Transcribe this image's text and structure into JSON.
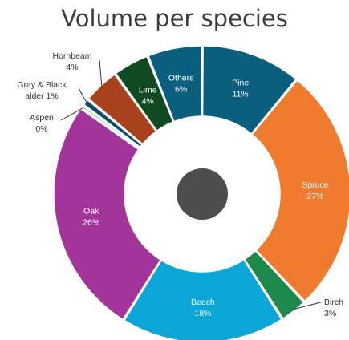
{
  "chart_data": {
    "type": "pie",
    "title": "Volume per species",
    "donut": true,
    "slices": [
      {
        "label": "Pine",
        "value_text": "11%",
        "value": 11,
        "color": "#0b5f7e",
        "label_inside": true
      },
      {
        "label": "Spruce",
        "value_text": "27%",
        "value": 27,
        "color": "#f07a2e",
        "label_inside": true
      },
      {
        "label": "Birch",
        "value_text": "3%",
        "value": 3,
        "color": "#1d8a4b",
        "label_inside": false
      },
      {
        "label": "Beech",
        "value_text": "18%",
        "value": 18,
        "color": "#0aa6d8",
        "label_inside": true
      },
      {
        "label": "Oak",
        "value_text": "26%",
        "value": 26,
        "color": "#a3349a",
        "label_inside": true
      },
      {
        "label": "Aspen",
        "value_text": "0%",
        "value": 0.4,
        "color": "#7fb87f",
        "label_inside": false
      },
      {
        "label": "Gray & Black alder",
        "value_text": "1%",
        "value": 0.8,
        "color": "#0b4f6c",
        "label_inside": false
      },
      {
        "label": "Hornbeam",
        "value_text": "4%",
        "value": 4,
        "color": "#a8421e",
        "label_inside": false
      },
      {
        "label": "Lime",
        "value_text": "4%",
        "value": 4,
        "color": "#0f4a22",
        "label_inside": true
      },
      {
        "label": "Others",
        "value_text": "6%",
        "value": 6,
        "color": "#0b5f7e",
        "label_inside": true
      }
    ],
    "center_dot_color": "#4d4d4f",
    "legend": "none"
  }
}
